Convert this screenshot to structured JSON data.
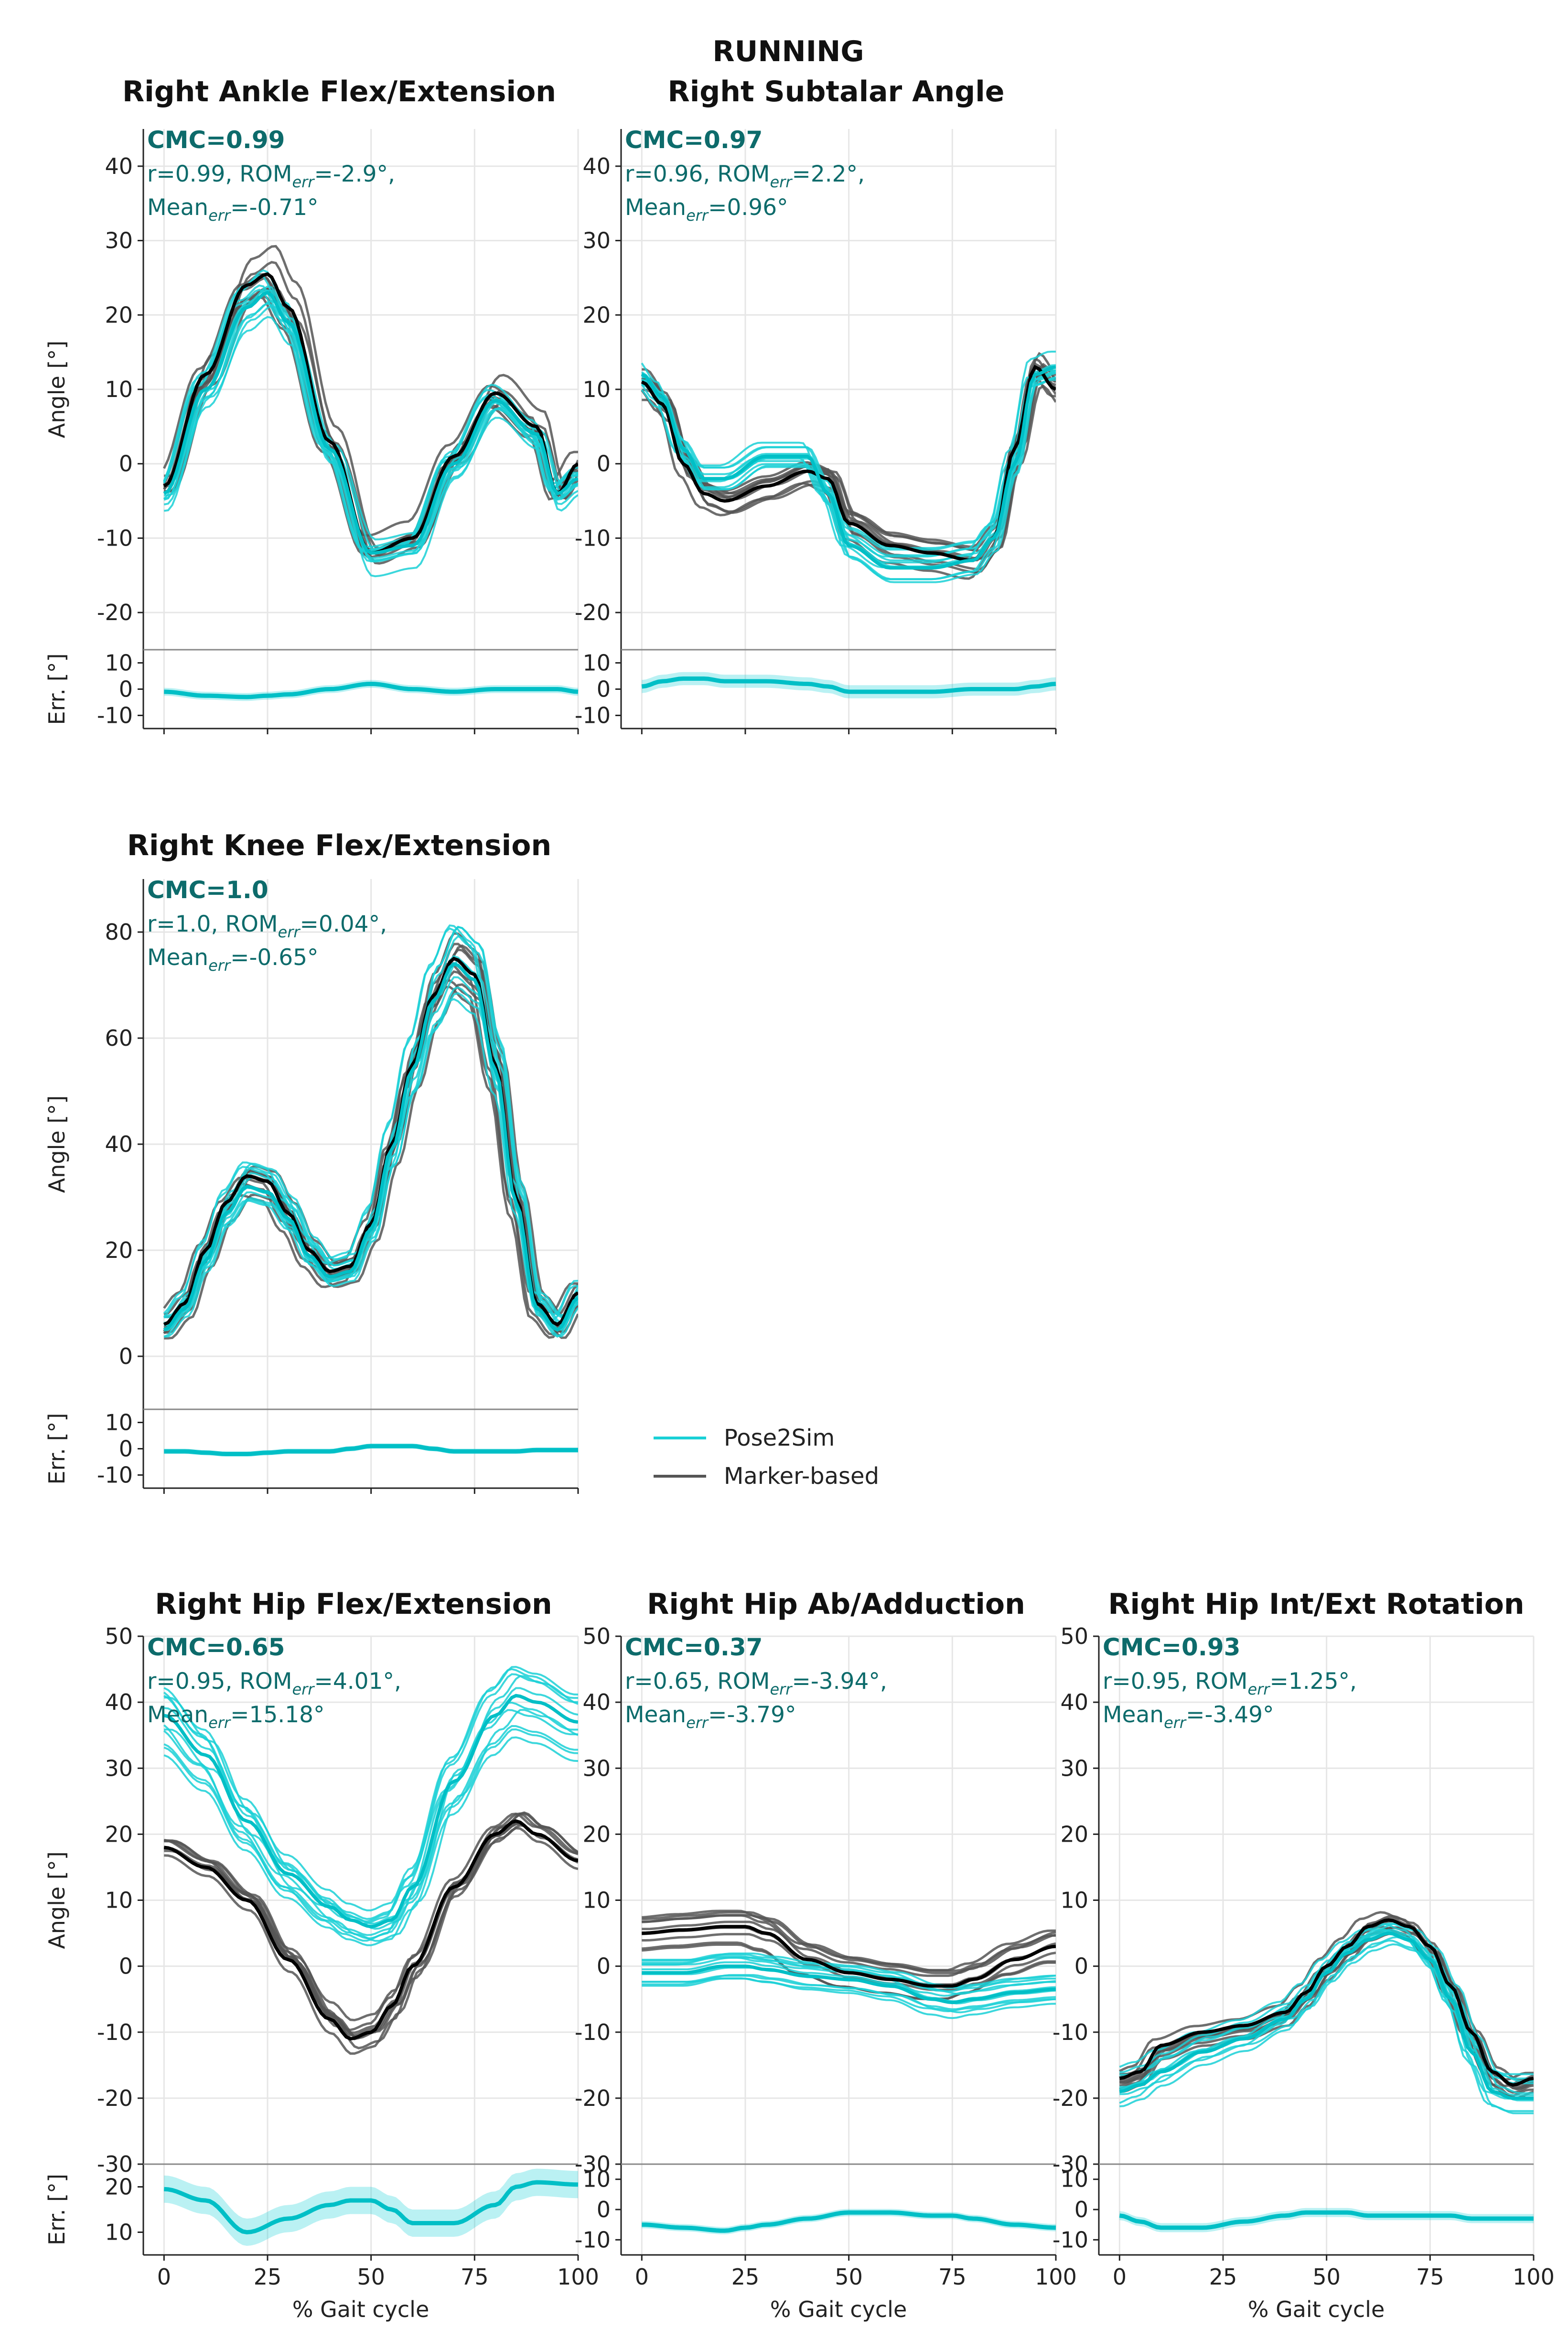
{
  "figure": {
    "title": "RUNNING",
    "legend": [
      {
        "label": "Pose2Sim",
        "color": "#1ad0d6"
      },
      {
        "label": "Marker-based",
        "color": "#555555"
      }
    ],
    "colors": {
      "pose2sim": "#1ad0d6",
      "marker": "#555555",
      "marker_mean": "#000000",
      "pose_mean": "#00bfc6",
      "annotation": "#0d6b6b"
    }
  },
  "chart_data": [
    {
      "type": "line",
      "title": "Right Ankle Flex/Extension",
      "xlabel": "",
      "ylabel": "Angle [°]",
      "err_label": "Err. [°]",
      "xlim": [
        -5,
        100
      ],
      "ylim": [
        -25,
        45
      ],
      "xticks": [
        0,
        25,
        50,
        75,
        100
      ],
      "yticks": [
        -20,
        -10,
        0,
        10,
        20,
        30,
        40
      ],
      "err_ylim": [
        -15,
        15
      ],
      "err_yticks": [
        -10,
        0,
        10
      ],
      "show_xticklabels": false,
      "annotation": {
        "cmc": "CMC=0.99",
        "r": "r=0.99",
        "rom": "-2.9°",
        "mean": "-0.71°"
      },
      "x": [
        0,
        10,
        20,
        25,
        30,
        40,
        50,
        60,
        70,
        80,
        90,
        95,
        100
      ],
      "series": [
        {
          "name": "Marker-based mean",
          "values": [
            -3,
            12,
            24,
            25.5,
            21,
            3,
            -12,
            -10,
            1,
            9.5,
            5,
            -4,
            0
          ]
        },
        {
          "name": "Pose2Sim mean",
          "values": [
            -4,
            10,
            21,
            23,
            19,
            2,
            -12,
            -11,
            0,
            8.5,
            4,
            -4,
            -2
          ]
        },
        {
          "name": "Mean error",
          "values": [
            -1,
            -2.5,
            -3,
            -2.5,
            -2,
            0,
            2,
            0,
            -1,
            0,
            0,
            0,
            -1
          ]
        }
      ],
      "err_band": 1.5
    },
    {
      "type": "line",
      "title": "Right Subtalar Angle",
      "xlabel": "",
      "ylabel": "",
      "err_label": "",
      "xlim": [
        -5,
        100
      ],
      "ylim": [
        -25,
        45
      ],
      "xticks": [
        0,
        25,
        50,
        75,
        100
      ],
      "yticks": [
        -20,
        -10,
        0,
        10,
        20,
        30,
        40
      ],
      "err_ylim": [
        -15,
        15
      ],
      "err_yticks": [
        -10,
        0,
        10
      ],
      "show_xticklabels": false,
      "annotation": {
        "cmc": "CMC=0.97",
        "r": "r=0.96",
        "rom": "2.2°",
        "mean": "0.96°"
      },
      "x": [
        0,
        5,
        10,
        15,
        20,
        30,
        40,
        45,
        50,
        60,
        70,
        80,
        85,
        90,
        95,
        100
      ],
      "series": [
        {
          "name": "Marker-based mean",
          "values": [
            11,
            8,
            0,
            -4,
            -5,
            -3,
            -1,
            -2,
            -8,
            -11,
            -12,
            -13,
            -10,
            2,
            13,
            10
          ]
        },
        {
          "name": "Pose2Sim mean",
          "values": [
            12,
            9,
            2,
            -2,
            -2,
            1,
            1,
            -4,
            -11,
            -14,
            -14,
            -13,
            -10,
            0,
            12,
            13
          ]
        },
        {
          "name": "Mean error",
          "values": [
            1,
            3,
            4,
            4,
            3,
            3,
            2,
            1,
            -1,
            -1,
            -1,
            0,
            0,
            0,
            1,
            2
          ]
        }
      ],
      "err_band": 2.5
    },
    {
      "type": "line",
      "title": "Right Knee Flex/Extension",
      "xlabel": "",
      "ylabel": "Angle [°]",
      "err_label": "Err. [°]",
      "xlim": [
        -5,
        100
      ],
      "ylim": [
        -10,
        90
      ],
      "xticks": [
        0,
        25,
        50,
        75,
        100
      ],
      "yticks": [
        0,
        20,
        40,
        60,
        80
      ],
      "err_ylim": [
        -15,
        15
      ],
      "err_yticks": [
        -10,
        0,
        10
      ],
      "show_xticklabels": false,
      "annotation": {
        "cmc": "CMC=1.0",
        "r": "r=1.0",
        "rom": "0.04°",
        "mean": "-0.65°"
      },
      "x": [
        0,
        5,
        10,
        15,
        20,
        25,
        30,
        35,
        40,
        45,
        50,
        55,
        60,
        65,
        70,
        75,
        80,
        85,
        90,
        95,
        100
      ],
      "series": [
        {
          "name": "Marker-based mean",
          "values": [
            6,
            10,
            20,
            29,
            34,
            33,
            27,
            20,
            16,
            17,
            25,
            40,
            55,
            68,
            75,
            72,
            55,
            30,
            10,
            6,
            12
          ]
        },
        {
          "name": "Pose2Sim mean",
          "values": [
            5,
            9,
            18,
            27,
            32,
            31,
            26,
            19,
            15,
            16,
            24,
            39,
            54,
            67,
            74,
            71,
            54,
            29,
            9,
            5,
            11
          ]
        },
        {
          "name": "Mean error",
          "values": [
            -1,
            -1,
            -1.5,
            -2,
            -2,
            -1.5,
            -1,
            -1,
            -1,
            0,
            1,
            1,
            1,
            0,
            -1,
            -1,
            -1,
            -1,
            -0.5,
            -0.5,
            -0.5
          ]
        }
      ],
      "err_band": 1
    },
    {
      "type": "line",
      "title": "Right Hip Flex/Extension",
      "xlabel": "% Gait cycle",
      "ylabel": "Angle [°]",
      "err_label": "Err. [°]",
      "xlim": [
        -5,
        100
      ],
      "ylim": [
        -30,
        50
      ],
      "xticks": [
        0,
        25,
        50,
        75,
        100
      ],
      "yticks": [
        -30,
        -20,
        -10,
        0,
        10,
        20,
        30,
        40,
        50
      ],
      "err_ylim": [
        5,
        25
      ],
      "err_yticks": [
        10,
        20
      ],
      "show_xticklabels": true,
      "annotation": {
        "cmc": "CMC=0.65",
        "r": "r=0.95",
        "rom": "4.01°",
        "mean": "15.18°"
      },
      "x": [
        0,
        10,
        20,
        30,
        40,
        45,
        50,
        55,
        60,
        70,
        80,
        85,
        90,
        100
      ],
      "series": [
        {
          "name": "Marker-based mean",
          "values": [
            18,
            15,
            10,
            1,
            -8,
            -11,
            -10,
            -6,
            0,
            12,
            20,
            22,
            20,
            16
          ]
        },
        {
          "name": "Pose2Sim mean",
          "values": [
            38,
            32,
            22,
            14,
            9,
            7,
            6,
            7,
            12,
            28,
            38,
            41,
            40,
            37
          ]
        },
        {
          "name": "Mean error",
          "values": [
            19.5,
            17,
            10,
            13,
            16,
            17,
            17,
            15,
            12,
            12,
            16,
            20,
            21,
            20.5
          ]
        }
      ],
      "err_band": 3
    },
    {
      "type": "line",
      "title": "Right Hip Ab/Adduction",
      "xlabel": "% Gait cycle",
      "ylabel": "",
      "err_label": "",
      "xlim": [
        -5,
        100
      ],
      "ylim": [
        -30,
        50
      ],
      "xticks": [
        0,
        25,
        50,
        75,
        100
      ],
      "yticks": [
        -30,
        -20,
        -10,
        0,
        10,
        20,
        30,
        40,
        50
      ],
      "err_ylim": [
        -15,
        15
      ],
      "err_yticks": [
        -10,
        0,
        10
      ],
      "show_xticklabels": true,
      "annotation": {
        "cmc": "CMC=0.37",
        "r": "r=0.65",
        "rom": "-3.94°",
        "mean": "-3.79°"
      },
      "x": [
        0,
        10,
        20,
        25,
        30,
        40,
        50,
        60,
        70,
        75,
        80,
        90,
        100
      ],
      "series": [
        {
          "name": "Marker-based mean",
          "values": [
            5,
            5.5,
            6,
            6,
            5,
            1,
            -1,
            -2,
            -3,
            -3,
            -2,
            1,
            3
          ]
        },
        {
          "name": "Pose2Sim mean",
          "values": [
            -1,
            -1,
            0,
            0,
            -0.5,
            -1.5,
            -2,
            -3,
            -5,
            -5.5,
            -5,
            -4,
            -3.5
          ]
        },
        {
          "name": "Mean error",
          "values": [
            -5,
            -6,
            -7,
            -6,
            -5,
            -3,
            -1,
            -1,
            -2,
            -2,
            -3,
            -5,
            -6
          ]
        }
      ],
      "err_band": 1.2
    },
    {
      "type": "line",
      "title": "Right Hip Int/Ext Rotation",
      "xlabel": "% Gait cycle",
      "ylabel": "",
      "err_label": "",
      "xlim": [
        -5,
        100
      ],
      "ylim": [
        -30,
        50
      ],
      "xticks": [
        0,
        25,
        50,
        75,
        100
      ],
      "yticks": [
        -30,
        -20,
        -10,
        0,
        10,
        20,
        30,
        40,
        50
      ],
      "err_ylim": [
        -15,
        15
      ],
      "err_yticks": [
        -10,
        0,
        10
      ],
      "show_xticklabels": true,
      "annotation": {
        "cmc": "CMC=0.93",
        "r": "r=0.95",
        "rom": "1.25°",
        "mean": "-3.49°"
      },
      "x": [
        0,
        5,
        10,
        20,
        30,
        40,
        45,
        50,
        55,
        60,
        65,
        70,
        75,
        80,
        85,
        90,
        95,
        100
      ],
      "series": [
        {
          "name": "Marker-based mean",
          "values": [
            -17,
            -16,
            -12,
            -10,
            -9,
            -7,
            -4,
            0,
            3,
            6,
            7,
            6,
            3,
            -3,
            -10,
            -16,
            -18,
            -17
          ]
        },
        {
          "name": "Pose2Sim mean",
          "values": [
            -19,
            -18,
            -16,
            -13,
            -11,
            -8,
            -5,
            -1,
            2,
            4,
            5,
            4,
            1,
            -5,
            -13,
            -19,
            -20,
            -20
          ]
        },
        {
          "name": "Mean error",
          "values": [
            -2,
            -4,
            -6,
            -6,
            -4,
            -2,
            -1,
            -1,
            -1,
            -2,
            -2,
            -2,
            -2,
            -2,
            -3,
            -3,
            -3,
            -3
          ]
        }
      ],
      "err_band": 1.5
    }
  ]
}
